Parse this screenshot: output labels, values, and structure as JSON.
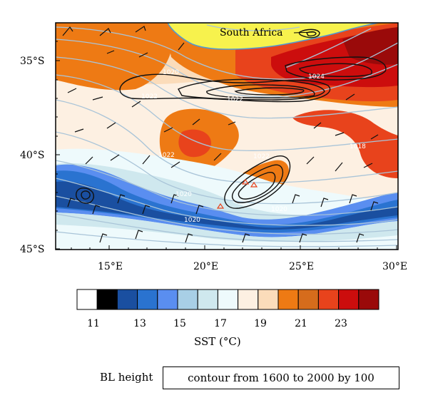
{
  "map": {
    "place_label": "South Africa",
    "lat_labels": [
      "35°S",
      "40°S",
      "45°S"
    ],
    "lon_labels": [
      "15°E",
      "20°E",
      "25°E",
      "30°E"
    ],
    "isobar_labels": [
      "1020",
      "1022",
      "1022",
      "1024",
      "1022",
      "1022",
      "1020",
      "1020",
      "1020",
      "1018"
    ]
  },
  "colorbar": {
    "tick_labels": [
      "11",
      "13",
      "15",
      "17",
      "19",
      "21",
      "23"
    ],
    "colors": [
      "#ffffff",
      "#000000",
      "#1a4fa0",
      "#2a73d0",
      "#5a8ef0",
      "#a8cfe6",
      "#cfe8ee",
      "#eefafc",
      "#fdf0e2",
      "#fbdcba",
      "#ee7a14",
      "#d66c1c",
      "#e8431c",
      "#cc0d0d",
      "#9a0a0a"
    ],
    "title": "SST (°C)"
  },
  "legend": {
    "label": "BL height",
    "text": "contour from 1600 to 2000 by 100"
  }
}
